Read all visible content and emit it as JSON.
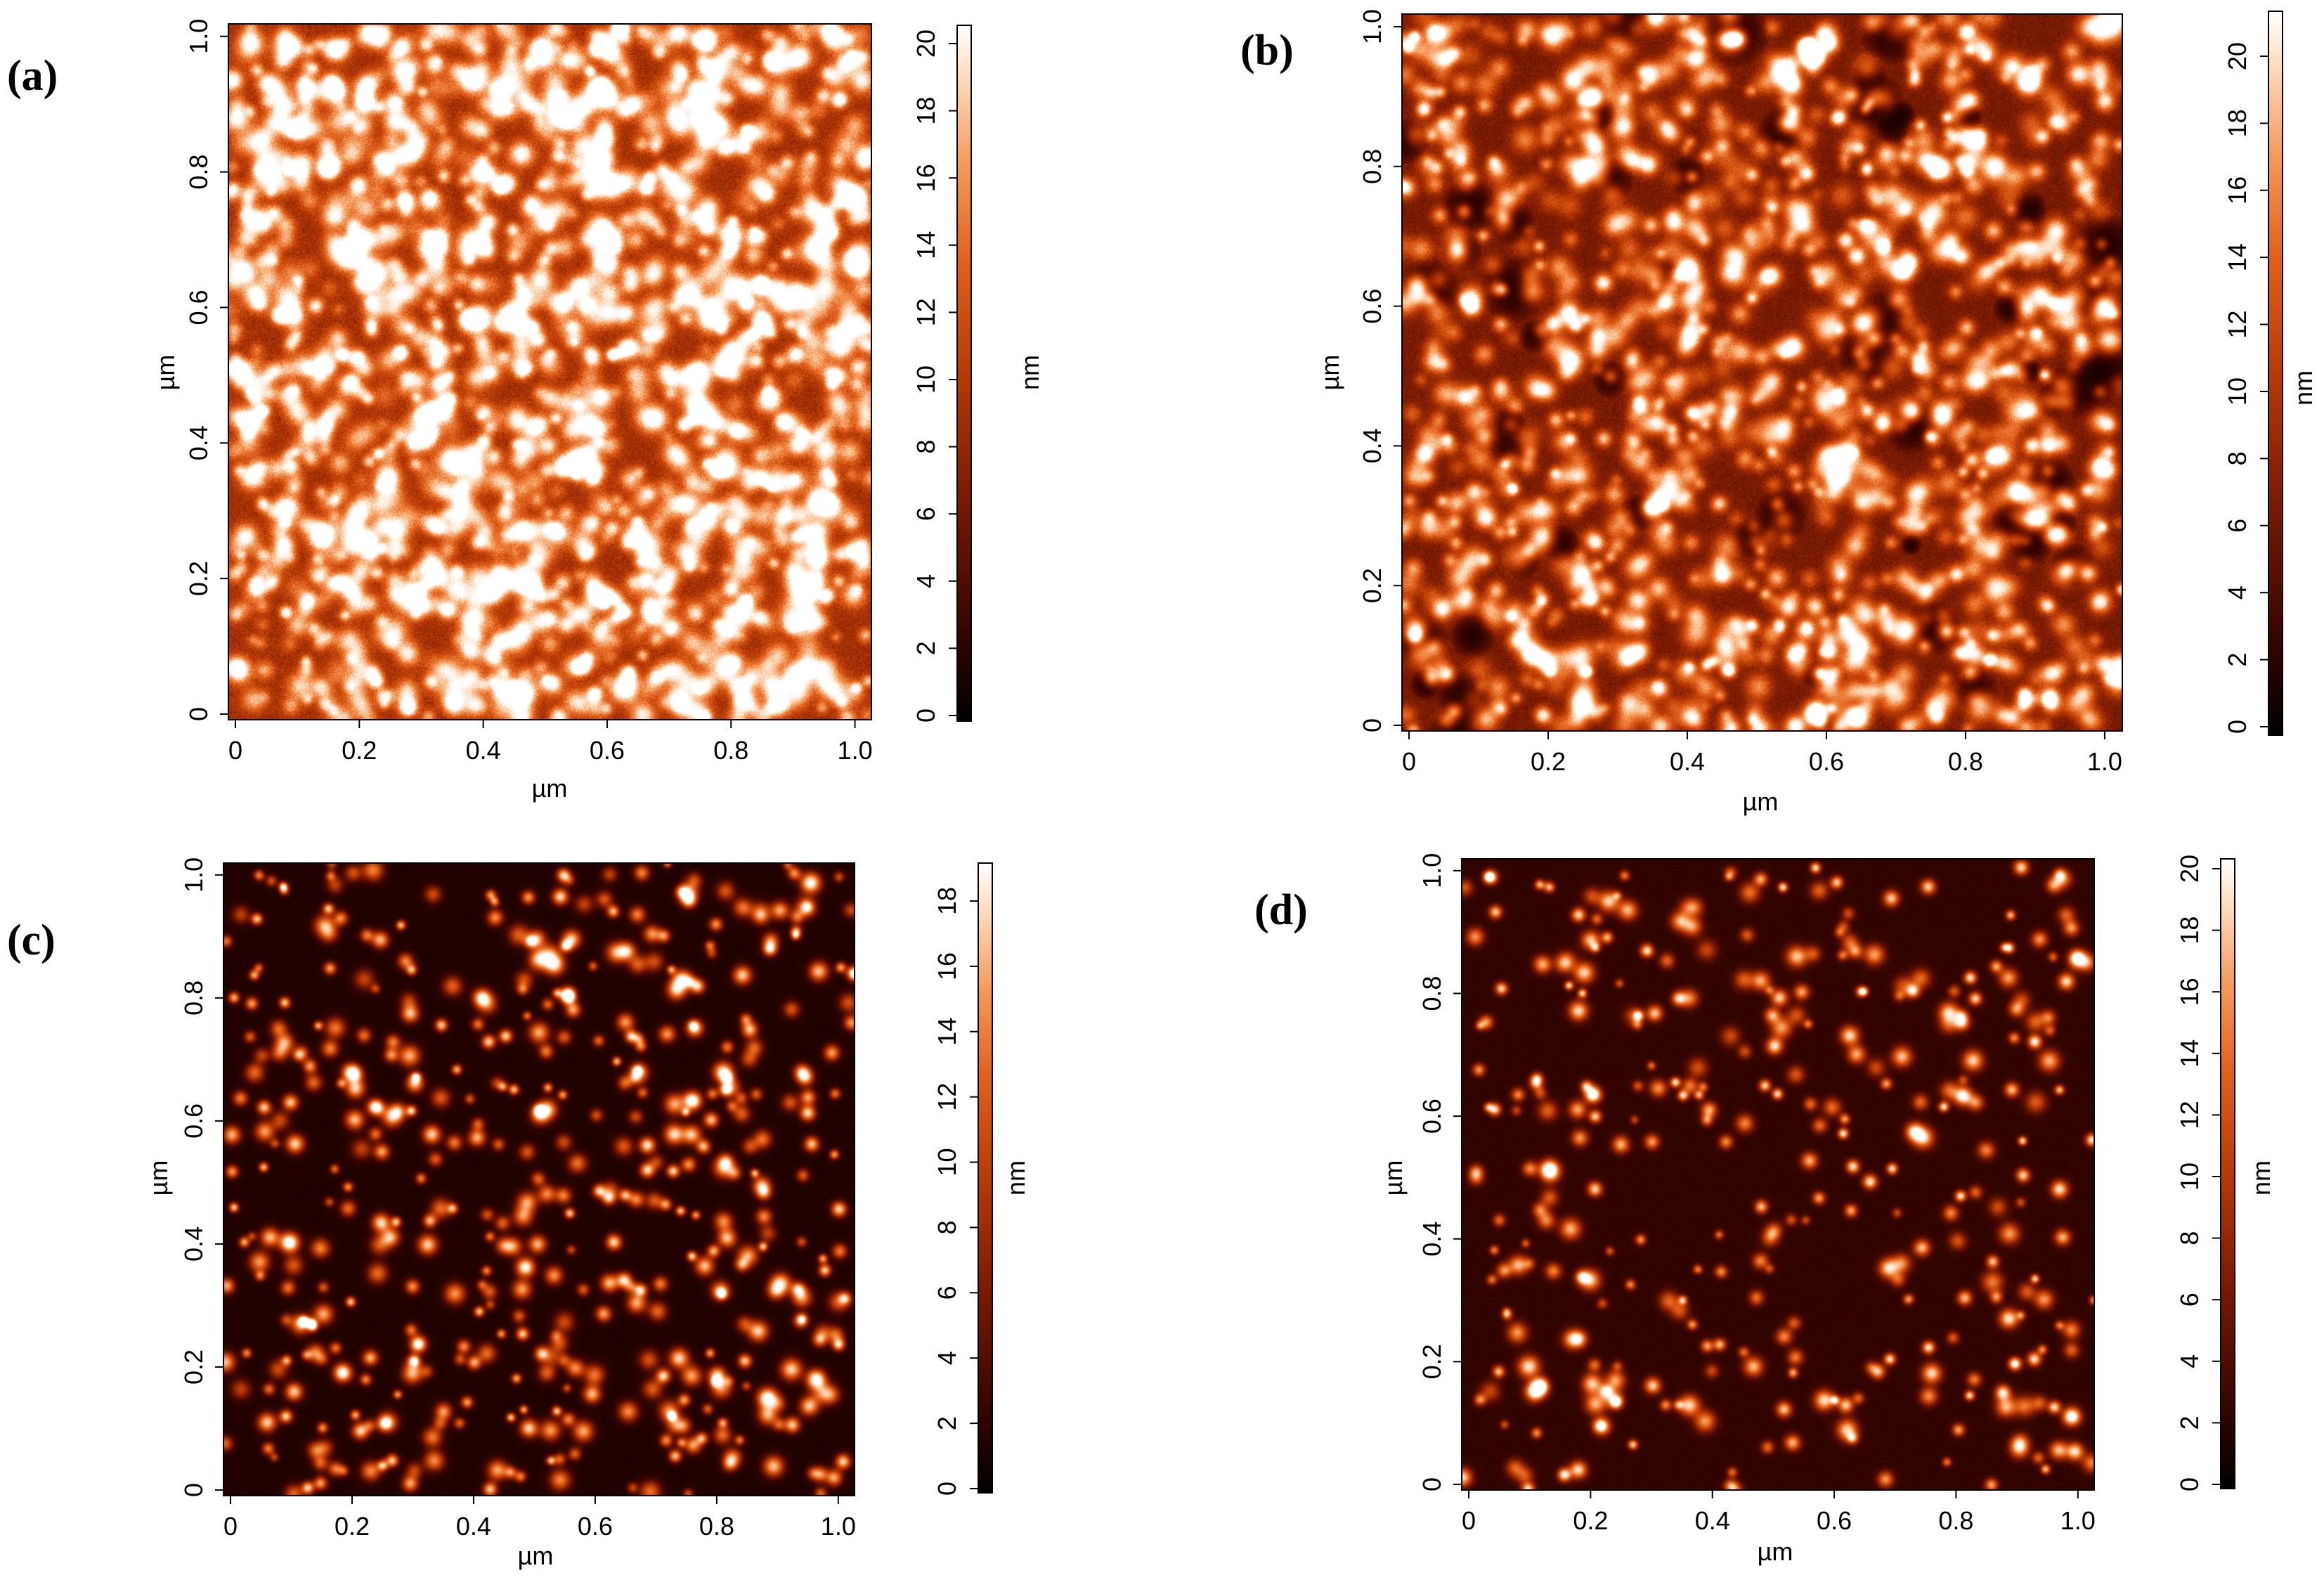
{
  "figure": {
    "panels": [
      {
        "id": "a",
        "label": "(a)",
        "x_axis_label": "µm",
        "y_axis_label": "µm",
        "x_ticks": [
          "0",
          "0.2",
          "0.4",
          "0.6",
          "0.8",
          "1.0"
        ],
        "y_ticks": [
          "0",
          "0.2",
          "0.4",
          "0.6",
          "0.8",
          "1.0"
        ],
        "colorbar_unit": "nm",
        "colorbar_ticks": [
          "0",
          "2",
          "4",
          "6",
          "8",
          "10",
          "12",
          "14",
          "16",
          "18",
          "20"
        ],
        "texture": "dense fine grains",
        "background_level": 0.38,
        "grain_count": 1700
      },
      {
        "id": "b",
        "label": "(b)",
        "x_axis_label": "µm",
        "y_axis_label": "µm",
        "x_ticks": [
          "0",
          "0.2",
          "0.4",
          "0.6",
          "0.8",
          "1.0"
        ],
        "y_ticks": [
          "0",
          "0.2",
          "0.4",
          "0.6",
          "0.8",
          "1.0"
        ],
        "colorbar_unit": "nm",
        "colorbar_ticks": [
          "0",
          "2",
          "4",
          "6",
          "8",
          "10",
          "12",
          "14",
          "16",
          "18",
          "20"
        ],
        "texture": "dense grains with dark pits",
        "background_level": 0.28,
        "grain_count": 1300
      },
      {
        "id": "c",
        "label": "(c)",
        "x_axis_label": "µm",
        "y_axis_label": "µm",
        "x_ticks": [
          "0",
          "0.2",
          "0.4",
          "0.6",
          "0.8",
          "1.0"
        ],
        "y_ticks": [
          "0",
          "0.2",
          "0.4",
          "0.6",
          "0.8",
          "1.0"
        ],
        "colorbar_unit": "nm",
        "colorbar_ticks": [
          "0",
          "2",
          "4",
          "6",
          "8",
          "10",
          "12",
          "14",
          "16",
          "18"
        ],
        "texture": "isolated particles on dark background",
        "background_level": 0.08,
        "grain_count": 480
      },
      {
        "id": "d",
        "label": "(d)",
        "x_axis_label": "µm",
        "y_axis_label": "µm",
        "x_ticks": [
          "0",
          "0.2",
          "0.4",
          "0.6",
          "0.8",
          "1.0"
        ],
        "y_ticks": [
          "0",
          "0.2",
          "0.4",
          "0.6",
          "0.8",
          "1.0"
        ],
        "colorbar_unit": "nm",
        "colorbar_ticks": [
          "0",
          "2",
          "4",
          "6",
          "8",
          "10",
          "12",
          "14",
          "16",
          "18",
          "20"
        ],
        "texture": "sparse particles on dark background",
        "background_level": 0.12,
        "grain_count": 330
      }
    ],
    "colormap": [
      "#000000",
      "#3a0500",
      "#7a1a00",
      "#b83a05",
      "#e2601a",
      "#f59a5a",
      "#ffd9b8",
      "#ffffff"
    ]
  }
}
